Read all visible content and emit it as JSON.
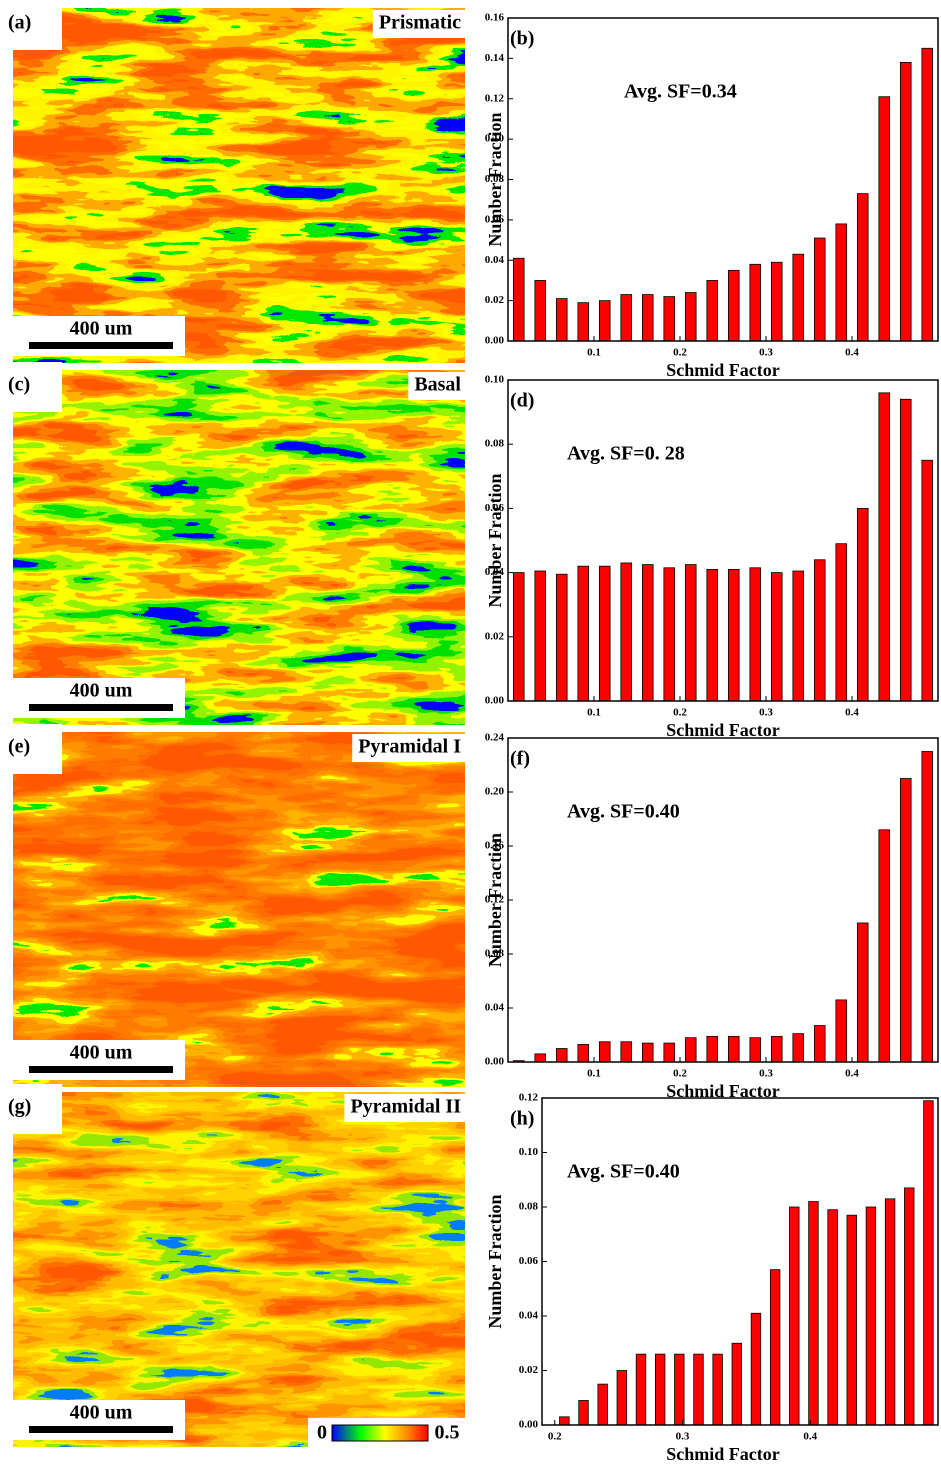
{
  "maps": [
    {
      "label": "(a)",
      "title": "Prismatic",
      "scale_bar": "400 um"
    },
    {
      "label": "(c)",
      "title": "Basal",
      "scale_bar": "400 um"
    },
    {
      "label": "(e)",
      "title": "Pyramidal I",
      "scale_bar": "400 um"
    },
    {
      "label": "(g)",
      "title": "Pyramidal II",
      "scale_bar": "400 um"
    }
  ],
  "colorbar": {
    "ticks": [
      0,
      0.5
    ]
  },
  "chart_data": [
    {
      "type": "bar",
      "panel_label": "(b)",
      "annotation": "Avg. SF=0.34",
      "xlabel": "Schmid Factor",
      "ylabel": "Number Fraction",
      "color": "#ff0000",
      "x": [
        0.0125,
        0.0375,
        0.0625,
        0.0875,
        0.1125,
        0.1375,
        0.1625,
        0.1875,
        0.2125,
        0.2375,
        0.2625,
        0.2875,
        0.3125,
        0.3375,
        0.3625,
        0.3875,
        0.4125,
        0.4375,
        0.4625,
        0.4875
      ],
      "values": [
        0.041,
        0.03,
        0.021,
        0.019,
        0.02,
        0.023,
        0.023,
        0.022,
        0.024,
        0.03,
        0.035,
        0.038,
        0.039,
        0.043,
        0.051,
        0.058,
        0.073,
        0.121,
        0.138,
        0.145
      ],
      "xlim": [
        0,
        0.5
      ],
      "xticks": [
        0.1,
        0.2,
        0.3,
        0.4
      ],
      "ylim": [
        0,
        0.16
      ],
      "yticks": [
        {
          "value": 0,
          "label": "0.00"
        },
        {
          "value": 0.02,
          "label": "0.02"
        },
        {
          "value": 0.04,
          "label": "0.04"
        },
        {
          "value": 0.06,
          "label": "0.06"
        },
        {
          "value": 0.08,
          "label": "0.08"
        },
        {
          "value": 0.1,
          "label": "0.10"
        },
        {
          "value": 0.12,
          "label": "0.12"
        },
        {
          "value": 0.14,
          "label": "0.14"
        },
        {
          "value": 0.16,
          "label": "0.16"
        }
      ]
    },
    {
      "type": "bar",
      "panel_label": "(d)",
      "annotation": "Avg. SF=0. 28",
      "xlabel": "Schmid Factor",
      "ylabel": "Number Fraction",
      "color": "#ff0000",
      "x": [
        0.0125,
        0.0375,
        0.0625,
        0.0875,
        0.1125,
        0.1375,
        0.1625,
        0.1875,
        0.2125,
        0.2375,
        0.2625,
        0.2875,
        0.3125,
        0.3375,
        0.3625,
        0.3875,
        0.4125,
        0.4375,
        0.4625,
        0.4875
      ],
      "values": [
        0.04,
        0.0405,
        0.0395,
        0.042,
        0.042,
        0.043,
        0.0425,
        0.0415,
        0.0425,
        0.041,
        0.041,
        0.0415,
        0.04,
        0.0405,
        0.044,
        0.049,
        0.06,
        0.096,
        0.094,
        0.075
      ],
      "xlim": [
        0,
        0.5
      ],
      "xticks": [
        0.1,
        0.2,
        0.3,
        0.4
      ],
      "ylim": [
        0,
        0.1
      ],
      "yticks": [
        {
          "value": 0,
          "label": "0.00"
        },
        {
          "value": 0.02,
          "label": "0.02"
        },
        {
          "value": 0.04,
          "label": "0.04"
        },
        {
          "value": 0.06,
          "label": "0.06"
        },
        {
          "value": 0.08,
          "label": "0.08"
        },
        {
          "value": 0.1,
          "label": "0.10"
        }
      ]
    },
    {
      "type": "bar",
      "panel_label": "(f)",
      "annotation": "Avg. SF=0.40",
      "xlabel": "Schmid Factor",
      "ylabel": "Number Fraction",
      "color": "#ff0000",
      "x": [
        0.0125,
        0.0375,
        0.0625,
        0.0875,
        0.1125,
        0.1375,
        0.1625,
        0.1875,
        0.2125,
        0.2375,
        0.2625,
        0.2875,
        0.3125,
        0.3375,
        0.3625,
        0.3875,
        0.4125,
        0.4375,
        0.4625,
        0.4875
      ],
      "values": [
        0.001,
        0.006,
        0.01,
        0.013,
        0.015,
        0.015,
        0.014,
        0.014,
        0.018,
        0.019,
        0.019,
        0.018,
        0.019,
        0.021,
        0.027,
        0.046,
        0.103,
        0.172,
        0.21,
        0.23
      ],
      "xlim": [
        0,
        0.5
      ],
      "xticks": [
        0.1,
        0.2,
        0.3,
        0.4
      ],
      "ylim": [
        0,
        0.24
      ],
      "yticks": [
        {
          "value": 0,
          "label": "0.00"
        },
        {
          "value": 0.04,
          "label": "0.04"
        },
        {
          "value": 0.08,
          "label": "0.08"
        },
        {
          "value": 0.12,
          "label": "0.12"
        },
        {
          "value": 0.16,
          "label": "0.16"
        },
        {
          "value": 0.2,
          "label": "0.20"
        },
        {
          "value": 0.24,
          "label": "0.24"
        }
      ]
    },
    {
      "type": "bar",
      "panel_label": "(h)",
      "annotation": "Avg. SF=0.40",
      "xlabel": "Schmid Factor",
      "ylabel": "Number Fraction",
      "color": "#ff0000",
      "x": [
        0.2075,
        0.2225,
        0.2375,
        0.2525,
        0.2675,
        0.2825,
        0.2975,
        0.3125,
        0.3275,
        0.3425,
        0.3575,
        0.3725,
        0.3875,
        0.4025,
        0.4175,
        0.4325,
        0.4475,
        0.4625,
        0.4775,
        0.4925
      ],
      "values": [
        0.003,
        0.009,
        0.015,
        0.02,
        0.026,
        0.026,
        0.026,
        0.026,
        0.026,
        0.03,
        0.041,
        0.057,
        0.08,
        0.082,
        0.079,
        0.077,
        0.08,
        0.083,
        0.087,
        0.119
      ],
      "xlim": [
        0.19,
        0.5
      ],
      "xticks": [
        0.2,
        0.3,
        0.4
      ],
      "ylim": [
        0,
        0.12
      ],
      "yticks": [
        {
          "value": 0,
          "label": "0.00"
        },
        {
          "value": 0.02,
          "label": "0.02"
        },
        {
          "value": 0.04,
          "label": "0.04"
        },
        {
          "value": 0.06,
          "label": "0.06"
        },
        {
          "value": 0.08,
          "label": "0.08"
        },
        {
          "value": 0.1,
          "label": "0.10"
        },
        {
          "value": 0.12,
          "label": "0.12"
        }
      ]
    }
  ]
}
